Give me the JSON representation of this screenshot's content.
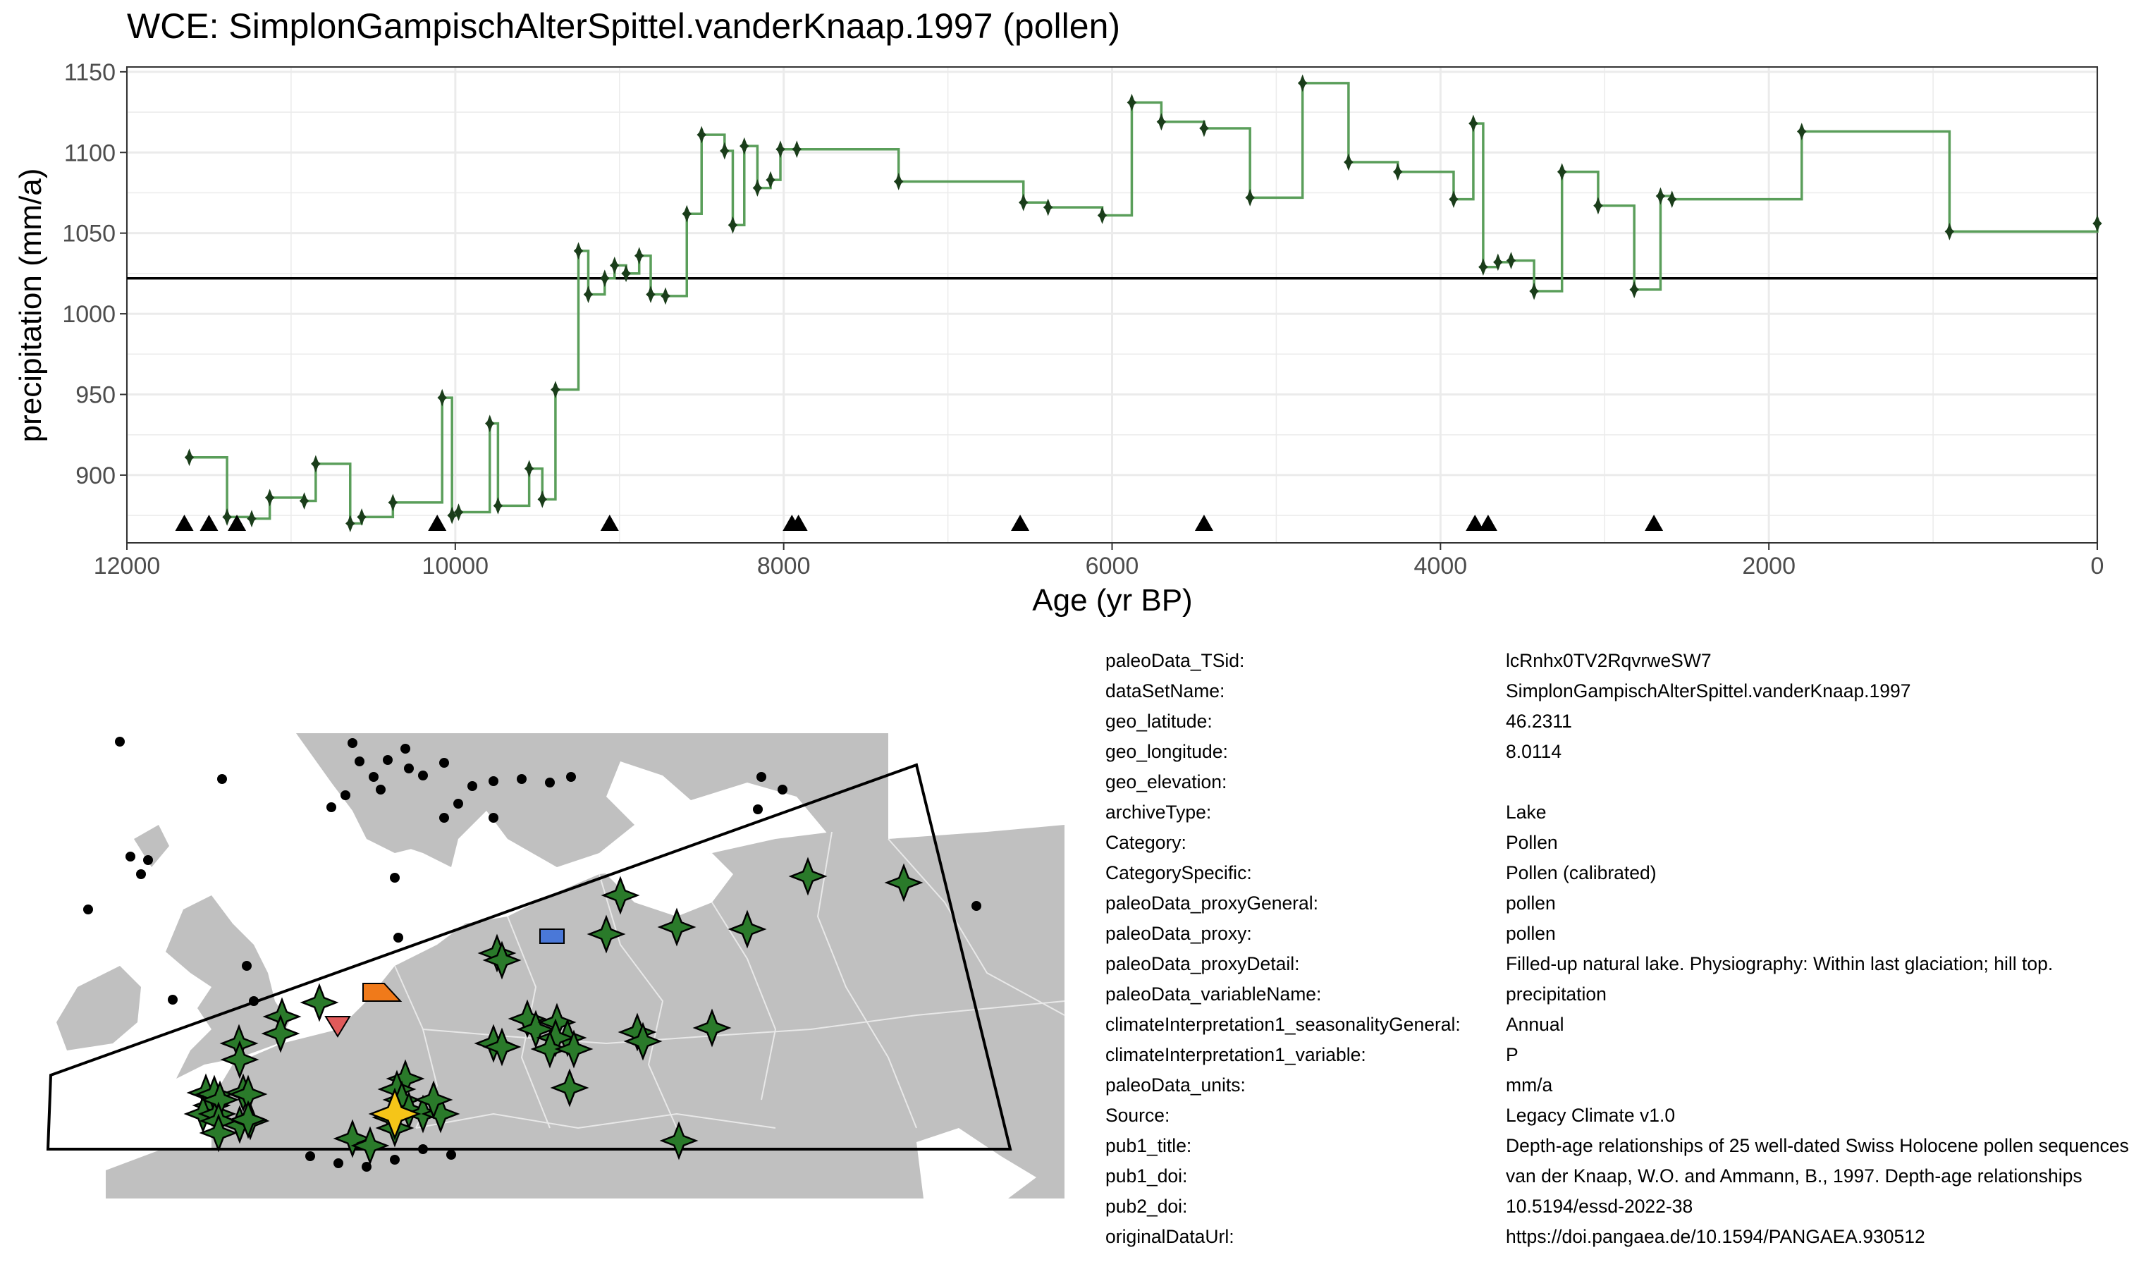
{
  "chart_data": {
    "type": "line",
    "title": "WCE: SimplonGampischAlterSpittel.vanderKnaap.1997 (pollen)",
    "xlabel": "Age (yr BP)",
    "ylabel": "precipitation (mm/a)",
    "xlim": [
      12000,
      0
    ],
    "ylim": [
      858,
      1153
    ],
    "x_reversed": true,
    "grid": true,
    "xticks": [
      12000,
      10000,
      8000,
      6000,
      4000,
      2000,
      0
    ],
    "yticks": [
      900,
      950,
      1000,
      1050,
      1100,
      1150
    ],
    "reference_line": 1022,
    "series": [
      {
        "values_style": "step",
        "color": "#5a9e5a",
        "x": [
          11620,
          11390,
          11240,
          11130,
          10920,
          10850,
          10640,
          10570,
          10380,
          10080,
          10020,
          9980,
          9790,
          9740,
          9550,
          9470,
          9390,
          9250,
          9190,
          9090,
          9030,
          8960,
          8880,
          8810,
          8720,
          8590,
          8500,
          8360,
          8310,
          8240,
          8160,
          8080,
          8020,
          7920,
          7300,
          6540,
          6390,
          6060,
          5880,
          5700,
          5440,
          5160,
          4840,
          4560,
          4260,
          3920,
          3800,
          3740,
          3650,
          3570,
          3430,
          3260,
          3040,
          2820,
          2660,
          2590,
          1800,
          900,
          0
        ],
        "values": [
          911,
          874,
          873,
          886,
          884,
          907,
          870,
          874,
          883,
          948,
          875,
          877,
          932,
          881,
          904,
          885,
          953,
          1039,
          1012,
          1022,
          1030,
          1025,
          1036,
          1012,
          1011,
          1062,
          1111,
          1101,
          1055,
          1104,
          1078,
          1083,
          1102,
          1102,
          1082,
          1069,
          1066,
          1061,
          1131,
          1119,
          1115,
          1072,
          1143,
          1094,
          1088,
          1071,
          1118,
          1029,
          1032,
          1033,
          1014,
          1088,
          1067,
          1015,
          1073,
          1071,
          1113,
          1051,
          1056
        ]
      }
    ],
    "markers_triangles_x": [
      11650,
      11500,
      11330,
      10110,
      9060,
      7950,
      7910,
      6560,
      5440,
      3790,
      3710,
      2700
    ]
  },
  "metadata": [
    {
      "key": "paleoData_TSid:",
      "value": "lcRnhx0TV2RqvrweSW7"
    },
    {
      "key": "dataSetName:",
      "value": "SimplonGampischAlterSpittel.vanderKnaap.1997"
    },
    {
      "key": "geo_latitude:",
      "value": "46.2311"
    },
    {
      "key": "geo_longitude:",
      "value": "8.0114"
    },
    {
      "key": "geo_elevation:",
      "value": ""
    },
    {
      "key": "archiveType:",
      "value": "Lake"
    },
    {
      "key": "Category:",
      "value": "Pollen"
    },
    {
      "key": "CategorySpecific:",
      "value": "Pollen (calibrated)"
    },
    {
      "key": "paleoData_proxyGeneral:",
      "value": "pollen"
    },
    {
      "key": "paleoData_proxy:",
      "value": "pollen"
    },
    {
      "key": "paleoData_proxyDetail:",
      "value": "Filled-up natural lake. Physiography: Within last glaciation; hill top."
    },
    {
      "key": "paleoData_variableName:",
      "value": "precipitation"
    },
    {
      "key": "climateInterpretation1_seasonalityGeneral:",
      "value": "Annual"
    },
    {
      "key": "climateInterpretation1_variable:",
      "value": "P"
    },
    {
      "key": "paleoData_units:",
      "value": "mm/a"
    },
    {
      "key": "Source:",
      "value": "Legacy Climate v1.0"
    },
    {
      "key": "pub1_title:",
      "value": "Depth-age relationships of 25 well-dated Swiss Holocene pollen sequences"
    },
    {
      "key": "pub1_doi:",
      "value": "van der Knaap, W.O. and Ammann, B., 1997. Depth-age relationships"
    },
    {
      "key": "pub2_doi:",
      "value": "10.5194/essd-2022-38"
    },
    {
      "key": "originalDataUrl:",
      "value": "https://doi.pangaea.de/10.1594/PANGAEA.930512"
    }
  ],
  "map": {
    "land_color": "#c0c0c0",
    "border_color": "#e8e8e8",
    "highlight_color": "#f5c518",
    "star_color": "#2a7a2a"
  }
}
